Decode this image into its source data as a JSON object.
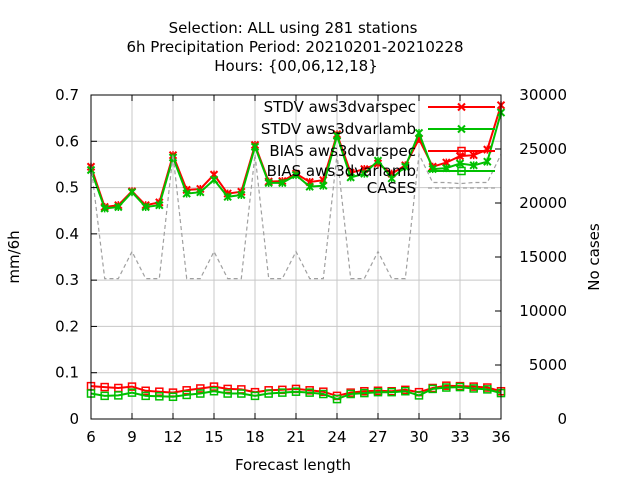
{
  "chart_data": {
    "type": "line",
    "title": [
      "Selection: ALL using   281 stations",
      "6h Precipitation   Period: 20210201-20210228",
      "Hours: {00,06,12,18}"
    ],
    "xlabel": "Forecast length",
    "ylabel": "mm/6h",
    "y2label": "No cases",
    "xlim": [
      6,
      36
    ],
    "ylim": [
      0,
      0.7
    ],
    "y2lim": [
      0,
      30000
    ],
    "x_ticks": [
      6,
      9,
      12,
      15,
      18,
      21,
      24,
      27,
      30,
      33,
      36
    ],
    "y_ticks": [
      0,
      0.1,
      0.2,
      0.3,
      0.4,
      0.5,
      0.6,
      0.7
    ],
    "y2_ticks": [
      0,
      5000,
      10000,
      15000,
      20000,
      25000,
      30000
    ],
    "x_tick_labels": [
      "6",
      "9",
      "12",
      "15",
      "18",
      "21",
      "24",
      "27",
      "30",
      "33",
      "36"
    ],
    "y_tick_labels": [
      "0",
      "0.1",
      "0.2",
      "0.3",
      "0.4",
      "0.5",
      "0.6",
      "0.7"
    ],
    "y2_tick_labels": [
      "0",
      "5000",
      "10000",
      "15000",
      "20000",
      "25000",
      "30000"
    ],
    "grid": true,
    "legend_position": "top-right",
    "x": [
      6,
      7,
      8,
      9,
      10,
      11,
      12,
      13,
      14,
      15,
      16,
      17,
      18,
      19,
      20,
      21,
      22,
      23,
      24,
      25,
      26,
      27,
      28,
      29,
      30,
      31,
      32,
      33,
      34,
      35,
      36
    ],
    "series": [
      {
        "name": "STDV aws3dvarspec",
        "color": "#ff0000",
        "marker": "x",
        "axis": "y",
        "values": [
          0.545,
          0.458,
          0.462,
          0.492,
          0.462,
          0.468,
          0.57,
          0.495,
          0.497,
          0.528,
          0.487,
          0.491,
          0.592,
          0.513,
          0.514,
          0.53,
          0.512,
          0.516,
          0.615,
          0.532,
          0.54,
          0.552,
          0.53,
          0.548,
          0.605,
          0.545,
          0.554,
          0.568,
          0.57,
          0.582,
          0.678
        ]
      },
      {
        "name": "STDV aws3dvarlamb",
        "color": "#00c000",
        "marker": "x",
        "axis": "y",
        "values": [
          0.538,
          0.455,
          0.458,
          0.49,
          0.458,
          0.462,
          0.565,
          0.487,
          0.49,
          0.517,
          0.48,
          0.484,
          0.588,
          0.51,
          0.51,
          0.527,
          0.502,
          0.504,
          0.612,
          0.522,
          0.53,
          0.558,
          0.52,
          0.545,
          0.618,
          0.54,
          0.542,
          0.552,
          0.548,
          0.556,
          0.662
        ]
      },
      {
        "name": "BIAS aws3dvarspec",
        "color": "#ff0000",
        "marker": "square",
        "axis": "y",
        "values": [
          0.071,
          0.069,
          0.067,
          0.07,
          0.061,
          0.059,
          0.057,
          0.062,
          0.066,
          0.07,
          0.065,
          0.064,
          0.058,
          0.062,
          0.063,
          0.065,
          0.062,
          0.059,
          0.05,
          0.057,
          0.06,
          0.061,
          0.06,
          0.063,
          0.058,
          0.067,
          0.072,
          0.071,
          0.07,
          0.068,
          0.06
        ]
      },
      {
        "name": "BIAS aws3dvarlamb",
        "color": "#00c000",
        "marker": "square",
        "axis": "y",
        "values": [
          0.055,
          0.05,
          0.051,
          0.057,
          0.05,
          0.049,
          0.048,
          0.052,
          0.055,
          0.06,
          0.055,
          0.055,
          0.05,
          0.055,
          0.057,
          0.059,
          0.057,
          0.054,
          0.043,
          0.054,
          0.056,
          0.058,
          0.058,
          0.06,
          0.051,
          0.065,
          0.068,
          0.069,
          0.066,
          0.064,
          0.056
        ]
      },
      {
        "name": "CASES",
        "color": "#a0a0a0",
        "marker": "none",
        "dash": true,
        "axis": "y2",
        "values": [
          23500,
          13000,
          13000,
          15500,
          13000,
          13000,
          24500,
          13000,
          13000,
          15500,
          13000,
          13000,
          24500,
          13000,
          13000,
          15500,
          13000,
          13000,
          24500,
          13000,
          13000,
          15500,
          13000,
          13000,
          24500,
          21900,
          21900,
          21800,
          21900,
          21900,
          24500
        ]
      }
    ]
  }
}
